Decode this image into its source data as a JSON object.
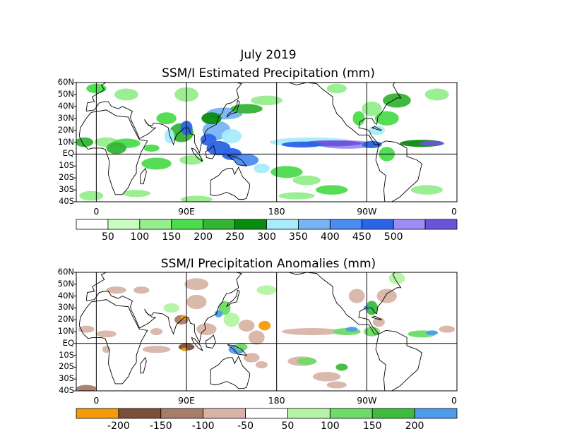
{
  "header": {
    "title": "July 2019"
  },
  "chart_data": [
    {
      "type": "heatmap",
      "title": "SSM/I Estimated Precipitation (mm)",
      "y_tick_labels": [
        "60N",
        "50N",
        "40N",
        "30N",
        "20N",
        "10N",
        "EQ",
        "10S",
        "20S",
        "30S",
        "40S"
      ],
      "x_tick_labels": [
        "0",
        "90E",
        "180",
        "90W",
        "0"
      ],
      "lat_range": [
        -40,
        60
      ],
      "lon_range": [
        -20,
        360
      ],
      "grid_lines": {
        "lon": [
          0,
          90,
          180,
          270
        ],
        "lat": [
          0
        ]
      },
      "colorbar": {
        "labels": [
          "50",
          "100",
          "150",
          "200",
          "250",
          "300",
          "350",
          "400",
          "450",
          "500"
        ],
        "colors": [
          "#ffffff",
          "#c8fcc0",
          "#96ee8c",
          "#4cdc4c",
          "#34b434",
          "#088c10",
          "#a8ecfc",
          "#78b4f4",
          "#4c8cf0",
          "#2c64e8",
          "#9c8cf4",
          "#6c54d8"
        ]
      }
    },
    {
      "type": "heatmap",
      "title": "SSM/I Precipitation Anomalies (mm)",
      "y_tick_labels": [
        "60N",
        "50N",
        "40N",
        "30N",
        "20N",
        "10N",
        "EQ",
        "10S",
        "20S",
        "30S",
        "40S"
      ],
      "x_tick_labels": [
        "0",
        "90E",
        "180",
        "90W",
        "0"
      ],
      "lat_range": [
        -40,
        60
      ],
      "lon_range": [
        -20,
        360
      ],
      "grid_lines": {
        "lon": [
          0,
          90,
          180,
          270
        ],
        "lat": [
          0
        ]
      },
      "colorbar": {
        "labels": [
          "-200",
          "-150",
          "-100",
          "-50",
          "50",
          "100",
          "150",
          "200"
        ],
        "colors": [
          "#f49c08",
          "#7c5038",
          "#a87c68",
          "#d8b4a8",
          "#ffffff",
          "#b4f4a4",
          "#6cdc64",
          "#3cbc3c",
          "#4c9cec"
        ]
      }
    }
  ]
}
